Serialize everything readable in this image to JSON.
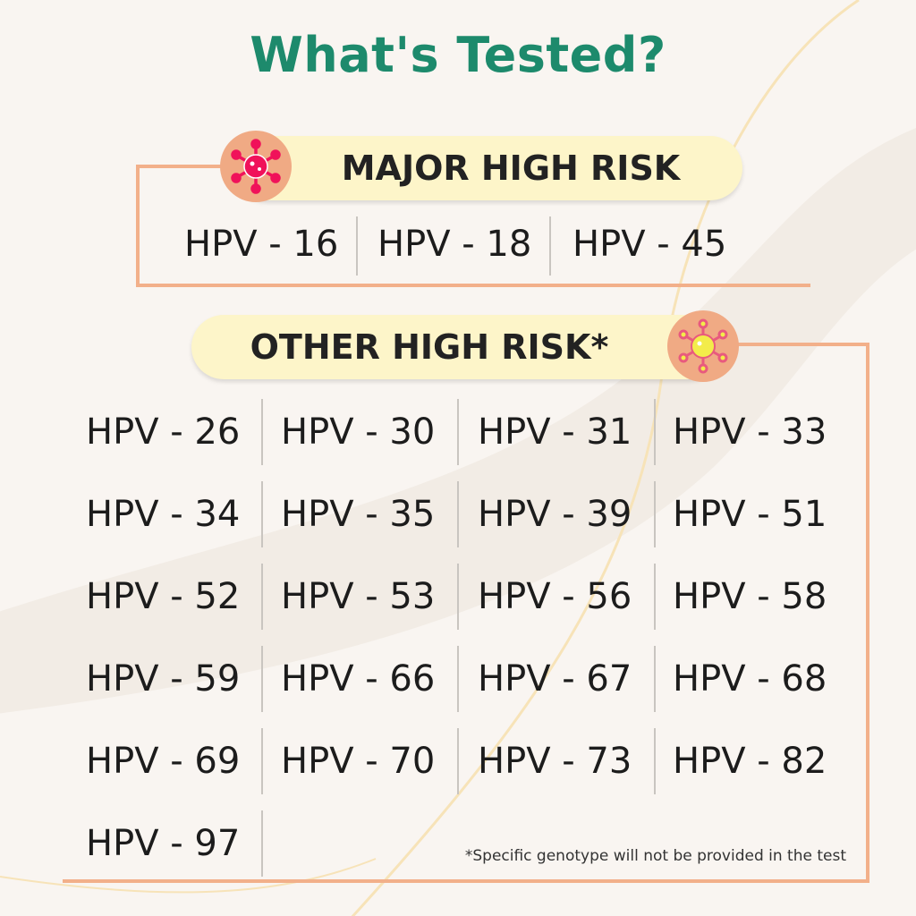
{
  "title": "What's Tested?",
  "colors": {
    "title": "#1d8a6c",
    "accent_line": "#f2b08a",
    "pill_bg": "#fdf5c9",
    "badge_bg": "#f0aa84",
    "major_virus": "#f0125a",
    "other_virus": "#f3ec4a"
  },
  "major": {
    "label": "MAJOR HIGH RISK",
    "icon": "virus-icon",
    "types": [
      "HPV - 16",
      "HPV - 18",
      "HPV - 45"
    ]
  },
  "other": {
    "label": "OTHER HIGH RISK*",
    "icon": "virus-icon",
    "types": [
      "HPV - 26",
      "HPV - 30",
      "HPV - 31",
      "HPV - 33",
      "HPV - 34",
      "HPV - 35",
      "HPV - 39",
      "HPV - 51",
      "HPV - 52",
      "HPV - 53",
      "HPV - 56",
      "HPV - 58",
      "HPV - 59",
      "HPV - 66",
      "HPV - 67",
      "HPV - 68",
      "HPV - 69",
      "HPV - 70",
      "HPV - 73",
      "HPV - 82",
      "HPV - 97"
    ]
  },
  "footnote": "*Specific genotype will not be provided in the test"
}
